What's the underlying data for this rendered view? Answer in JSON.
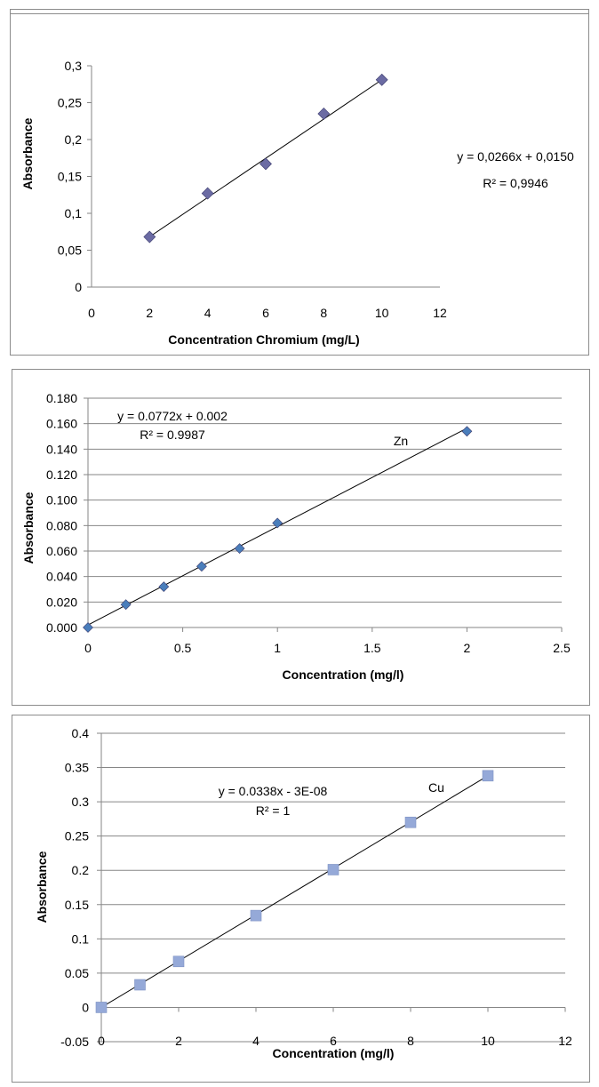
{
  "chart_data": [
    {
      "type": "scatter",
      "title": "",
      "xlabel": "Concentration Chromium (mg/L)",
      "ylabel": "Absorbance",
      "xlim": [
        0,
        12
      ],
      "ylim": [
        0,
        0.3
      ],
      "xticks": [
        "0",
        "2",
        "4",
        "6",
        "8",
        "10",
        "12"
      ],
      "yticks": [
        "0",
        "0,05",
        "0,1",
        "0,15",
        "0,2",
        "0,25",
        "0,3"
      ],
      "grid": false,
      "marker": "diamond",
      "marker_color": "#6b6ba3",
      "series": [
        {
          "x": [
            2,
            4,
            6,
            8,
            10
          ],
          "y": [
            0.068,
            0.127,
            0.167,
            0.235,
            0.281
          ]
        }
      ],
      "trendline": {
        "slope": 0.0266,
        "intercept": 0.015,
        "x_range": [
          2,
          10
        ]
      },
      "equation": "y = 0,0266x + 0,0150",
      "r_squared": "R²  = 0,9946",
      "series_label": ""
    },
    {
      "type": "scatter",
      "title": "",
      "xlabel": "Concentration (mg/l)",
      "ylabel": "Absorbance",
      "xlim": [
        0,
        2.5
      ],
      "ylim": [
        0,
        0.18
      ],
      "xticks": [
        "0",
        "0.5",
        "1",
        "1.5",
        "2",
        "2.5"
      ],
      "yticks": [
        "0.000",
        "0.020",
        "0.040",
        "0.060",
        "0.080",
        "0.100",
        "0.120",
        "0.140",
        "0.160",
        "0.180"
      ],
      "grid": true,
      "marker": "diamond",
      "marker_color": "#4a7ebb",
      "series": [
        {
          "x": [
            0,
            0.2,
            0.4,
            0.6,
            0.8,
            1,
            2
          ],
          "y": [
            0,
            0.018,
            0.032,
            0.048,
            0.062,
            0.082,
            0.154
          ]
        }
      ],
      "trendline": {
        "slope": 0.0772,
        "intercept": 0.002,
        "x_range": [
          0,
          2
        ]
      },
      "equation": "y = 0.0772x + 0.002",
      "r_squared": "R² = 0.9987",
      "series_label": "Zn"
    },
    {
      "type": "scatter",
      "title": "",
      "xlabel": "Concentration (mg/l)",
      "ylabel": "Absorbance",
      "xlim": [
        0,
        12
      ],
      "ylim": [
        -0.05,
        0.4
      ],
      "xticks": [
        "0",
        "2",
        "4",
        "6",
        "8",
        "10",
        "12"
      ],
      "yticks": [
        "-0.05",
        "0",
        "0.05",
        "0.1",
        "0.15",
        "0.2",
        "0.25",
        "0.3",
        "0.35",
        "0.4"
      ],
      "grid": true,
      "marker": "square",
      "marker_color": "#95a9d8",
      "series": [
        {
          "x": [
            0,
            1,
            2,
            4,
            6,
            8,
            10
          ],
          "y": [
            0,
            0.033,
            0.067,
            0.134,
            0.201,
            0.27,
            0.338
          ]
        }
      ],
      "trendline": {
        "slope": 0.0338,
        "intercept": 0,
        "x_range": [
          0,
          10
        ]
      },
      "equation": "y = 0.0338x - 3E-08",
      "r_squared": "R² = 1",
      "series_label": "Cu"
    }
  ]
}
